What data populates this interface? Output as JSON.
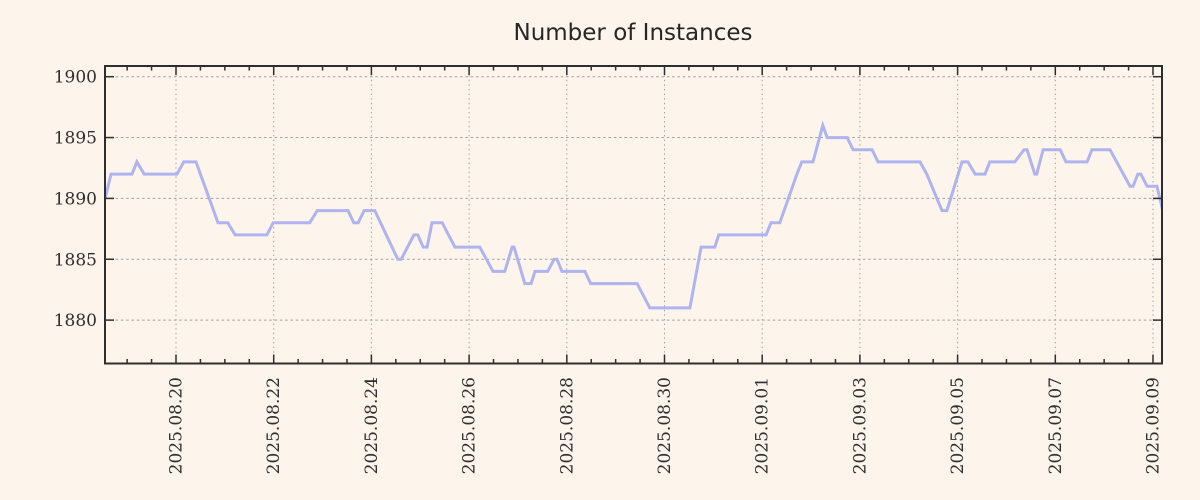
{
  "page": {
    "background_color": "#fdf4ec"
  },
  "chart_data": {
    "type": "line",
    "title": "Number of Instances",
    "xlabel": "",
    "ylabel": "",
    "legend": false,
    "grid": true,
    "x_axis": {
      "unit": "date",
      "range_days_from_first_labeled_tick": [
        -1.45,
        20.2
      ],
      "major_tick_interval_days": 2,
      "minor_tick_interval_days": 0.5,
      "ticks": [
        {
          "d": 0,
          "label": "2025.08.20"
        },
        {
          "d": 2,
          "label": "2025.08.22"
        },
        {
          "d": 4,
          "label": "2025.08.24"
        },
        {
          "d": 6,
          "label": "2025.08.26"
        },
        {
          "d": 8,
          "label": "2025.08.28"
        },
        {
          "d": 10,
          "label": "2025.08.30"
        },
        {
          "d": 12,
          "label": "2025.09.01"
        },
        {
          "d": 14,
          "label": "2025.09.03"
        },
        {
          "d": 16,
          "label": "2025.09.05"
        },
        {
          "d": 18,
          "label": "2025.09.07"
        },
        {
          "d": 20,
          "label": "2025.09.09"
        }
      ]
    },
    "y_axis": {
      "ticks": [
        1880,
        1885,
        1890,
        1895,
        1900
      ],
      "range": [
        1876.4,
        1900.9
      ]
    },
    "colors": {
      "line": "#afb3ef",
      "axis": "#2e2e2e",
      "grid": "#a0a0a0",
      "text": "#2e2e2e",
      "title_text": "#262626",
      "background": "#fdf4ec"
    },
    "series": [
      {
        "name": "instances",
        "color": "#afb3ef",
        "points": [
          [
            -1.45,
            1890
          ],
          [
            -1.33,
            1892
          ],
          [
            -0.9,
            1892
          ],
          [
            -0.8,
            1893
          ],
          [
            -0.65,
            1892
          ],
          [
            0.02,
            1892
          ],
          [
            0.16,
            1893
          ],
          [
            0.41,
            1893
          ],
          [
            0.86,
            1888
          ],
          [
            1.06,
            1888
          ],
          [
            1.21,
            1887
          ],
          [
            1.86,
            1887
          ],
          [
            1.99,
            1888
          ],
          [
            2.74,
            1888
          ],
          [
            2.89,
            1889
          ],
          [
            3.52,
            1889
          ],
          [
            3.64,
            1888
          ],
          [
            3.73,
            1888
          ],
          [
            3.85,
            1889
          ],
          [
            4.07,
            1889
          ],
          [
            4.54,
            1885
          ],
          [
            4.61,
            1885
          ],
          [
            4.87,
            1887
          ],
          [
            4.95,
            1887
          ],
          [
            5.06,
            1886
          ],
          [
            5.14,
            1886
          ],
          [
            5.24,
            1888
          ],
          [
            5.45,
            1888
          ],
          [
            5.71,
            1886
          ],
          [
            6.22,
            1886
          ],
          [
            6.49,
            1884
          ],
          [
            6.73,
            1884
          ],
          [
            6.88,
            1886
          ],
          [
            6.92,
            1886
          ],
          [
            7.14,
            1883
          ],
          [
            7.27,
            1883
          ],
          [
            7.35,
            1884
          ],
          [
            7.61,
            1884
          ],
          [
            7.74,
            1885
          ],
          [
            7.8,
            1885
          ],
          [
            7.9,
            1884
          ],
          [
            8.37,
            1884
          ],
          [
            8.49,
            1883
          ],
          [
            9.44,
            1883
          ],
          [
            9.7,
            1881
          ],
          [
            10.52,
            1881
          ],
          [
            10.75,
            1886
          ],
          [
            11.03,
            1886
          ],
          [
            11.11,
            1887
          ],
          [
            12.08,
            1887
          ],
          [
            12.18,
            1888
          ],
          [
            12.36,
            1888
          ],
          [
            12.71,
            1892
          ],
          [
            12.81,
            1893
          ],
          [
            13.04,
            1893
          ],
          [
            13.24,
            1896
          ],
          [
            13.33,
            1895
          ],
          [
            13.74,
            1895
          ],
          [
            13.86,
            1894
          ],
          [
            14.25,
            1894
          ],
          [
            14.37,
            1893
          ],
          [
            15.23,
            1893
          ],
          [
            15.37,
            1892
          ],
          [
            15.68,
            1889
          ],
          [
            15.78,
            1889
          ],
          [
            16.09,
            1893
          ],
          [
            16.21,
            1893
          ],
          [
            16.36,
            1892
          ],
          [
            16.56,
            1892
          ],
          [
            16.66,
            1893
          ],
          [
            17.17,
            1893
          ],
          [
            17.36,
            1894
          ],
          [
            17.42,
            1894
          ],
          [
            17.58,
            1892
          ],
          [
            17.62,
            1892
          ],
          [
            17.75,
            1894
          ],
          [
            18.1,
            1894
          ],
          [
            18.22,
            1893
          ],
          [
            18.65,
            1893
          ],
          [
            18.75,
            1894
          ],
          [
            19.12,
            1894
          ],
          [
            19.53,
            1891
          ],
          [
            19.59,
            1891
          ],
          [
            19.69,
            1892
          ],
          [
            19.75,
            1892
          ],
          [
            19.88,
            1891
          ],
          [
            20.08,
            1891
          ],
          [
            20.2,
            1889
          ]
        ]
      }
    ]
  }
}
